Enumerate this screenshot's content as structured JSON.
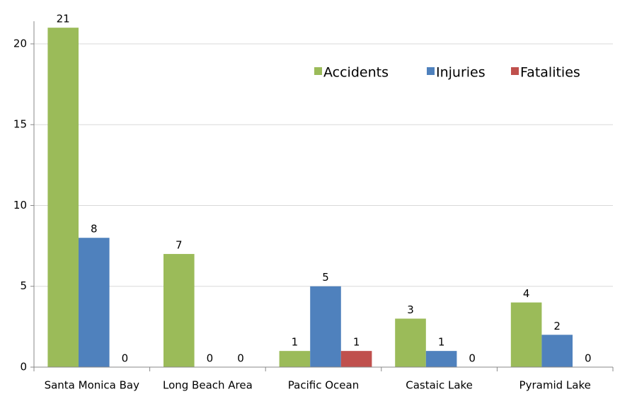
{
  "chart_data": {
    "type": "bar",
    "categories": [
      "Santa Monica Bay",
      "Long Beach Area",
      "Pacific Ocean",
      "Castaic Lake",
      "Pyramid Lake"
    ],
    "series": [
      {
        "name": "Accidents",
        "color": "#9bbb59",
        "values": [
          21,
          7,
          1,
          3,
          4
        ]
      },
      {
        "name": "Injuries",
        "color": "#4f81bd",
        "values": [
          8,
          0,
          5,
          1,
          2
        ]
      },
      {
        "name": "Fatalities",
        "color": "#c0504d",
        "values": [
          0,
          0,
          1,
          0,
          0
        ]
      }
    ],
    "ylim": [
      0,
      21.4
    ],
    "yticks": [
      0,
      5,
      10,
      15,
      20
    ],
    "grid": true,
    "legend": "top-right"
  }
}
